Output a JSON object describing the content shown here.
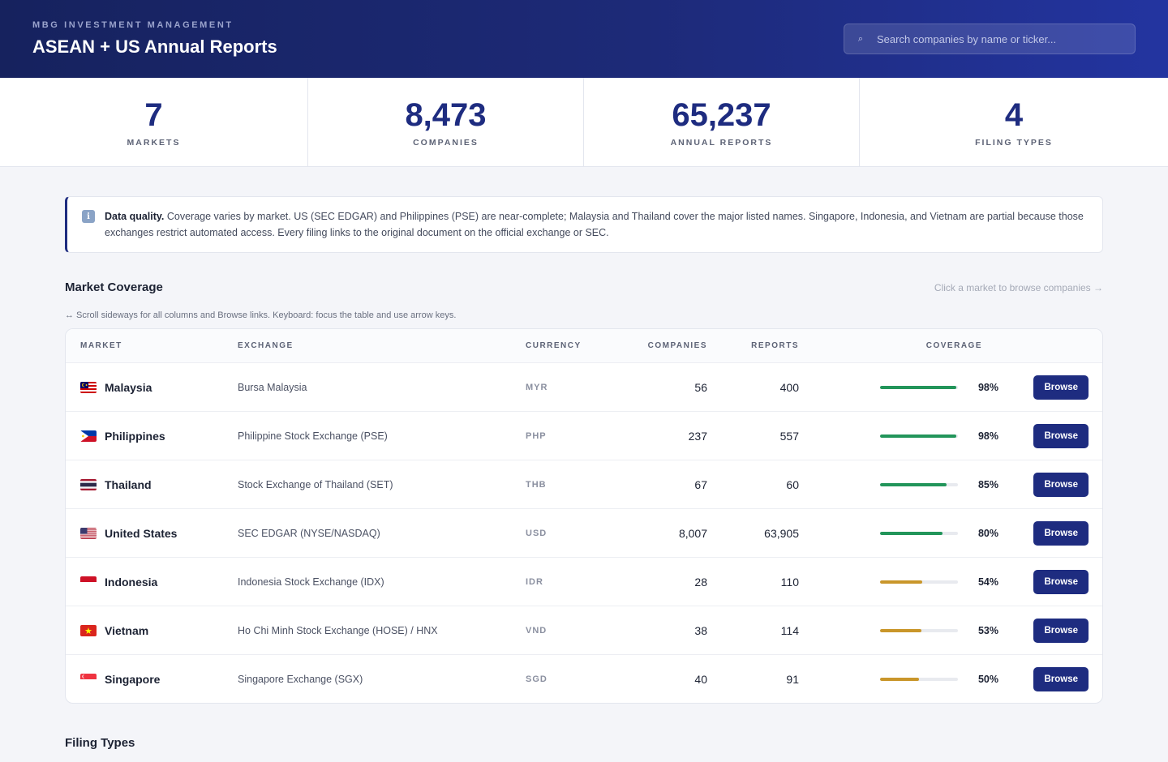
{
  "header": {
    "org": "MBG INVESTMENT MANAGEMENT",
    "title": "ASEAN + US Annual Reports",
    "search_placeholder": "Search companies by name or ticker...",
    "search_icon": "search-icon"
  },
  "stats": [
    {
      "value": "7",
      "label": "MARKETS"
    },
    {
      "value": "8,473",
      "label": "COMPANIES"
    },
    {
      "value": "65,237",
      "label": "ANNUAL REPORTS"
    },
    {
      "value": "4",
      "label": "FILING TYPES"
    }
  ],
  "notice": {
    "icon": "info-icon",
    "bold": "Data quality.",
    "text": " Coverage varies by market. US (SEC EDGAR) and Philippines (PSE) are near-complete; Malaysia and Thailand cover the major listed names. Singapore, Indonesia, and Vietnam are partial because those exchanges restrict automated access. Every filing links to the original document on the official exchange or SEC."
  },
  "coverage": {
    "title": "Market Coverage",
    "hint": "Click a market to browse companies →",
    "scroll_hint": "↔ Scroll sideways for all columns and Browse links. Keyboard: focus the table and use arrow keys.",
    "columns": {
      "market": "MARKET",
      "exchange": "EXCHANGE",
      "currency": "CURRENCY",
      "companies": "COMPANIES",
      "reports": "REPORTS",
      "coverage": "COVERAGE"
    },
    "colors": {
      "high": "#22955a",
      "low": "#c9962a"
    },
    "rows": [
      {
        "flag": "flag-malaysia",
        "market": "Malaysia",
        "exchange": "Bursa Malaysia",
        "currency": "MYR",
        "companies": "56",
        "reports": "400",
        "coverage": 98,
        "coverage_label": "98%",
        "level": "high",
        "action": "Browse"
      },
      {
        "flag": "flag-philippines",
        "market": "Philippines",
        "exchange": "Philippine Stock Exchange (PSE)",
        "currency": "PHP",
        "companies": "237",
        "reports": "557",
        "coverage": 98,
        "coverage_label": "98%",
        "level": "high",
        "action": "Browse"
      },
      {
        "flag": "flag-thailand",
        "market": "Thailand",
        "exchange": "Stock Exchange of Thailand (SET)",
        "currency": "THB",
        "companies": "67",
        "reports": "60",
        "coverage": 85,
        "coverage_label": "85%",
        "level": "high",
        "action": "Browse"
      },
      {
        "flag": "flag-united-states",
        "market": "United States",
        "exchange": "SEC EDGAR (NYSE/NASDAQ)",
        "currency": "USD",
        "companies": "8,007",
        "reports": "63,905",
        "coverage": 80,
        "coverage_label": "80%",
        "level": "high",
        "action": "Browse"
      },
      {
        "flag": "flag-indonesia",
        "market": "Indonesia",
        "exchange": "Indonesia Stock Exchange (IDX)",
        "currency": "IDR",
        "companies": "28",
        "reports": "110",
        "coverage": 54,
        "coverage_label": "54%",
        "level": "low",
        "action": "Browse"
      },
      {
        "flag": "flag-vietnam",
        "market": "Vietnam",
        "exchange": "Ho Chi Minh Stock Exchange (HOSE) / HNX",
        "currency": "VND",
        "companies": "38",
        "reports": "114",
        "coverage": 53,
        "coverage_label": "53%",
        "level": "low",
        "action": "Browse"
      },
      {
        "flag": "flag-singapore",
        "market": "Singapore",
        "exchange": "Singapore Exchange (SGX)",
        "currency": "SGD",
        "companies": "40",
        "reports": "91",
        "coverage": 50,
        "coverage_label": "50%",
        "level": "low",
        "action": "Browse"
      }
    ]
  },
  "filing_types": {
    "title": "Filing Types"
  }
}
